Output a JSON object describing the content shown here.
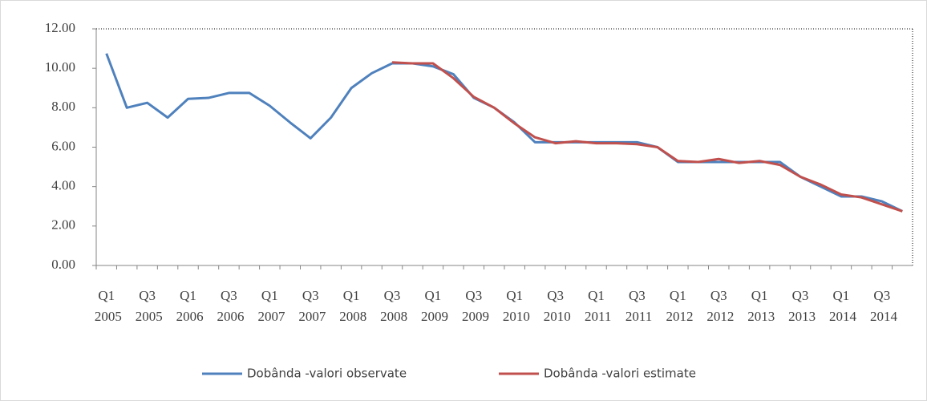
{
  "chart_data": {
    "type": "line",
    "categories": [
      "Q1 2005",
      null,
      "Q3 2005",
      null,
      "Q1 2006",
      null,
      "Q3 2006",
      null,
      "Q1 2007",
      null,
      "Q3 2007",
      null,
      "Q1 2008",
      null,
      "Q3 2008",
      null,
      "Q1 2009",
      null,
      "Q3 2009",
      null,
      "Q1 2010",
      null,
      "Q3 2010",
      null,
      "Q1 2011",
      null,
      "Q3 2011",
      null,
      "Q1 2012",
      null,
      "Q3 2012",
      null,
      "Q1 2013",
      null,
      "Q3 2013",
      null,
      "Q1 2014",
      null,
      "Q3 2014",
      null
    ],
    "series": [
      {
        "name": "Dobânda -valori observate",
        "color": "#4f81bd",
        "values": [
          10.75,
          8.0,
          8.25,
          7.5,
          8.45,
          8.5,
          8.75,
          8.75,
          8.1,
          7.25,
          6.45,
          7.5,
          9.0,
          9.75,
          10.25,
          10.25,
          10.1,
          9.7,
          8.5,
          8.0,
          7.25,
          6.25,
          6.25,
          6.25,
          6.25,
          6.25,
          6.25,
          6.0,
          5.25,
          5.25,
          5.25,
          5.25,
          5.25,
          5.25,
          4.5,
          4.0,
          3.5,
          3.5,
          3.25,
          2.75
        ]
      },
      {
        "name": "Dobânda -valori estimate",
        "color": "#c0504d",
        "values": [
          null,
          null,
          null,
          null,
          null,
          null,
          null,
          null,
          null,
          null,
          null,
          null,
          null,
          null,
          10.3,
          10.25,
          10.25,
          9.5,
          8.55,
          8.0,
          7.2,
          6.5,
          6.2,
          6.3,
          6.2,
          6.2,
          6.15,
          6.0,
          5.3,
          5.25,
          5.4,
          5.2,
          5.3,
          5.1,
          4.5,
          4.1,
          3.6,
          3.45,
          3.1,
          2.75
        ]
      }
    ],
    "ylim": [
      0,
      12
    ],
    "yticks": [
      {
        "value": 0,
        "label": "0.00"
      },
      {
        "value": 2,
        "label": "2.00"
      },
      {
        "value": 4,
        "label": "4.00"
      },
      {
        "value": 6,
        "label": "6.00"
      },
      {
        "value": 8,
        "label": "8.00"
      },
      {
        "value": 10,
        "label": "10.00"
      },
      {
        "value": 12,
        "label": "12.00"
      }
    ],
    "legend": "bottom"
  }
}
